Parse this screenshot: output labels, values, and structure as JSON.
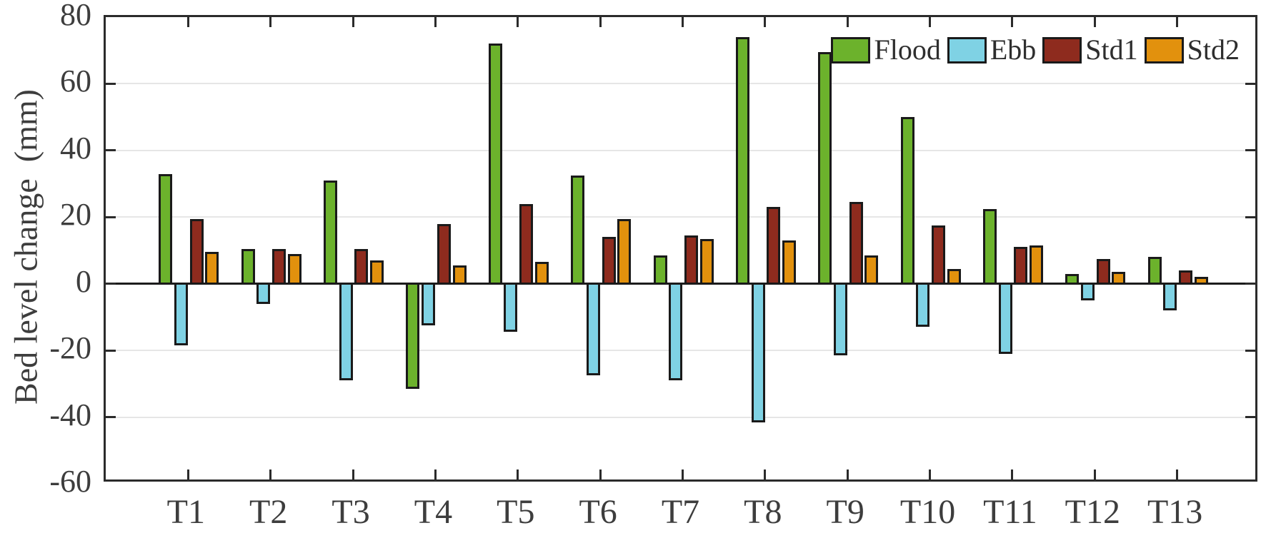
{
  "chart_data": {
    "type": "bar",
    "title": "",
    "xlabel": "",
    "ylabel": "Bed level change  (mm)",
    "ylim": [
      -60,
      80
    ],
    "yticks": [
      80,
      60,
      40,
      20,
      0,
      -20,
      -40,
      -60
    ],
    "gridlines_at": [
      60,
      40,
      20,
      -20,
      -40
    ],
    "grid": "horizontal",
    "legend_position": "top-right-inside",
    "categories": [
      "T1",
      "T2",
      "T3",
      "T4",
      "T5",
      "T6",
      "T7",
      "T8",
      "T9",
      "T10",
      "T11",
      "T12",
      "T13"
    ],
    "series": [
      {
        "name": "Flood",
        "color": "#6CB22C",
        "values": [
          33,
          10.5,
          31,
          -31.5,
          72,
          32.5,
          8.5,
          74,
          69.5,
          50,
          22.5,
          3,
          8
        ]
      },
      {
        "name": "Ebb",
        "color": "#7FD2E4",
        "values": [
          -18.5,
          -6,
          -29,
          -12.5,
          -14.5,
          -27.5,
          -29,
          -41.5,
          -21.5,
          -13,
          -21,
          -5,
          -8
        ]
      },
      {
        "name": "Std1",
        "color": "#8E2B1E",
        "values": [
          19.5,
          10.5,
          10.5,
          18,
          24,
          14,
          14.5,
          23,
          24.5,
          17.5,
          11,
          7.5,
          4
        ]
      },
      {
        "name": "Std2",
        "color": "#E2910D",
        "values": [
          9.5,
          9,
          7,
          5.5,
          6.5,
          19.5,
          13.5,
          13,
          8.5,
          4.5,
          11.5,
          3.5,
          2
        ]
      }
    ],
    "colors": {
      "axis": "#2b2b2b",
      "zero_line": "#1c1c1c",
      "grid": "#e6e6e6",
      "text": "#3d3d3d",
      "bar_border": "#1a1a1a",
      "background": "#ffffff"
    }
  }
}
